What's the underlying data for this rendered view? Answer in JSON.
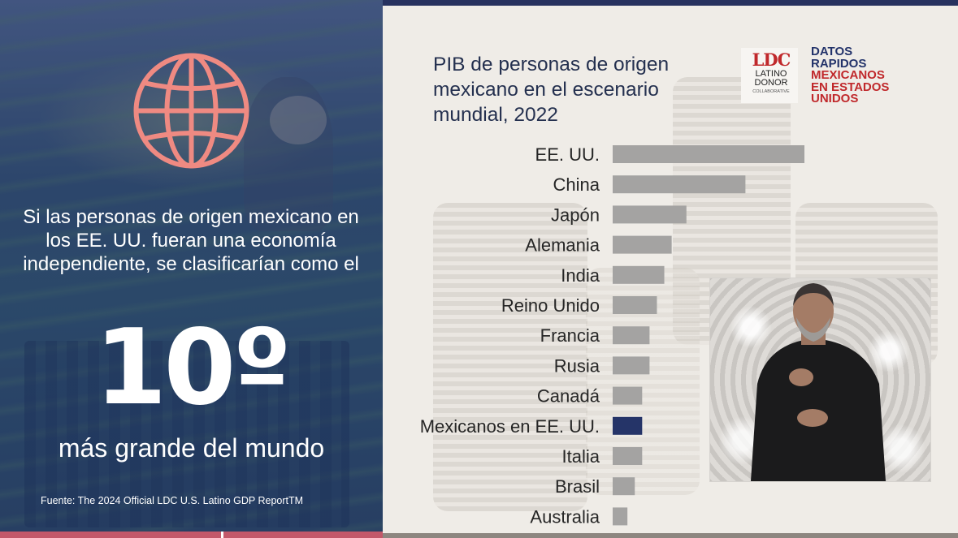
{
  "left_panel": {
    "lead_text": "Si las personas de origen mexicano en los EE. UU. fueran una economía independiente, se clasificarían como el",
    "rank": "10º",
    "subtitle": "más grande del mundo",
    "source": "Fuente: The 2024 Official LDC U.S. Latino GDP ReportTM",
    "icon": "globe-icon",
    "icon_color": "#ef8a82"
  },
  "header": {
    "logo_mark": "LDC",
    "logo_line1": "LATINO",
    "logo_line2": "DONOR",
    "logo_line3": "COLLABORATIVE",
    "brand_line1": "DATOS",
    "brand_line2": "RAPIDOS",
    "brand_line3": "MEXICANOS",
    "brand_line4": "EN ESTADOS",
    "brand_line5": "UNIDOS"
  },
  "chart_data": {
    "type": "bar",
    "orientation": "horizontal",
    "title": "PIB de personas de origen mexicano en el escenario mundial, 2022",
    "categories": [
      "EE. UU.",
      "China",
      "Japón",
      "Alemania",
      "India",
      "Reino Unido",
      "Francia",
      "Rusia",
      "Canadá",
      "Mexicanos en EE. UU.",
      "Italia",
      "Brasil",
      "Australia"
    ],
    "values": [
      26.0,
      18.0,
      10.0,
      8.0,
      7.0,
      6.0,
      5.0,
      5.0,
      4.0,
      4.0,
      4.0,
      3.0,
      2.0
    ],
    "xlim": [
      0,
      26
    ],
    "grid": false,
    "legend": "none",
    "highlight_category": "Mexicanos en EE. UU.",
    "colors": {
      "bar": "#a4a3a2",
      "highlight": "#253468",
      "label": "#262626"
    }
  }
}
